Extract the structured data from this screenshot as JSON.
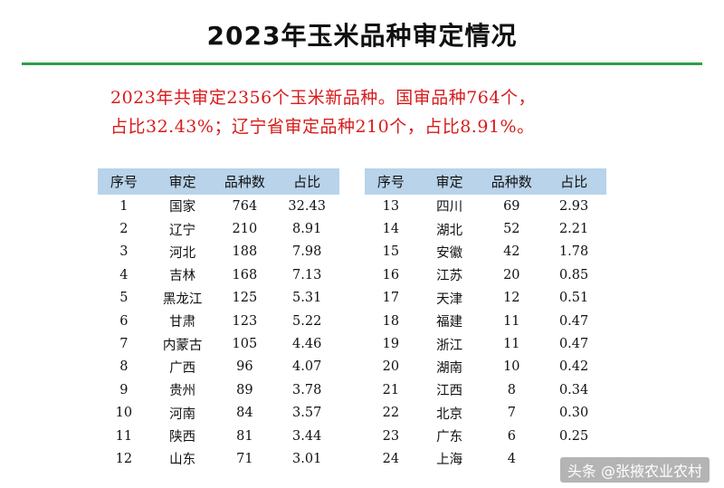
{
  "title": "2023年玉米品种审定情况",
  "summary": {
    "line1": "2023年共审定2356个玉米新品种。国审品种764个，",
    "line2": "占比32.43%；辽宁省审定品种210个，占比8.91%。"
  },
  "table": {
    "headers": [
      "序号",
      "审定",
      "品种数",
      "占比"
    ],
    "left": [
      [
        "1",
        "国家",
        "764",
        "32.43"
      ],
      [
        "2",
        "辽宁",
        "210",
        "8.91"
      ],
      [
        "3",
        "河北",
        "188",
        "7.98"
      ],
      [
        "4",
        "吉林",
        "168",
        "7.13"
      ],
      [
        "5",
        "黑龙江",
        "125",
        "5.31"
      ],
      [
        "6",
        "甘肃",
        "123",
        "5.22"
      ],
      [
        "7",
        "内蒙古",
        "105",
        "4.46"
      ],
      [
        "8",
        "广西",
        "96",
        "4.07"
      ],
      [
        "9",
        "贵州",
        "89",
        "3.78"
      ],
      [
        "10",
        "河南",
        "84",
        "3.57"
      ],
      [
        "11",
        "陕西",
        "81",
        "3.44"
      ],
      [
        "12",
        "山东",
        "71",
        "3.01"
      ]
    ],
    "right": [
      [
        "13",
        "四川",
        "69",
        "2.93"
      ],
      [
        "14",
        "湖北",
        "52",
        "2.21"
      ],
      [
        "15",
        "安徽",
        "42",
        "1.78"
      ],
      [
        "16",
        "江苏",
        "20",
        "0.85"
      ],
      [
        "17",
        "天津",
        "12",
        "0.51"
      ],
      [
        "18",
        "福建",
        "11",
        "0.47"
      ],
      [
        "19",
        "浙江",
        "11",
        "0.47"
      ],
      [
        "20",
        "湖南",
        "10",
        "0.42"
      ],
      [
        "21",
        "江西",
        "8",
        "0.34"
      ],
      [
        "22",
        "北京",
        "7",
        "0.30"
      ],
      [
        "23",
        "广东",
        "6",
        "0.25"
      ],
      [
        "24",
        "上海",
        "4",
        ""
      ]
    ]
  },
  "watermark": "头条 @张掖农业农村",
  "colors": {
    "accent_green": "#2e9e49",
    "summary_red": "#d81b1b",
    "header_blue": "#b8d3ea"
  }
}
